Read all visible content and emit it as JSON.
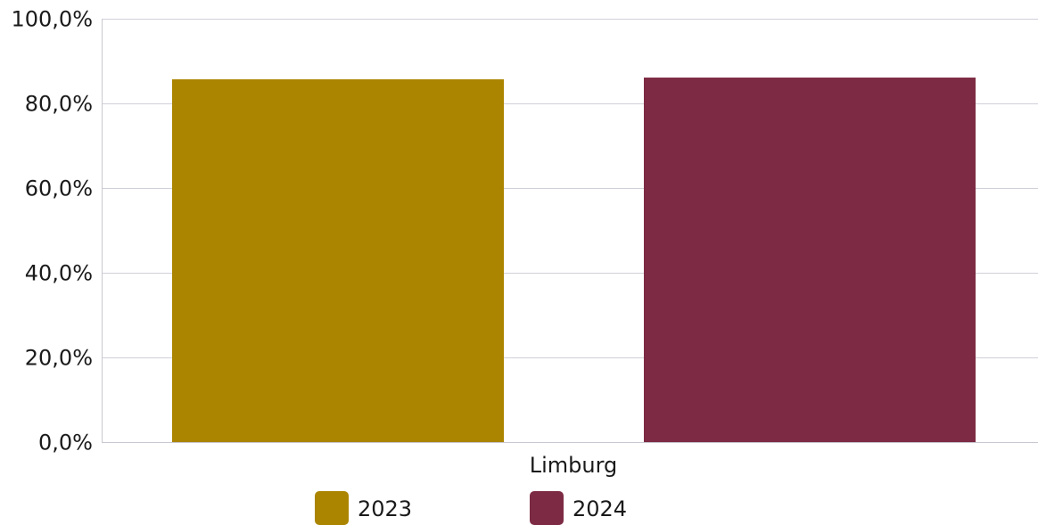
{
  "chart_data": {
    "type": "bar",
    "title": "",
    "xlabel": "",
    "ylabel": "",
    "categories": [
      "Limburg"
    ],
    "series": [
      {
        "name": "2023",
        "values": [
          85.7
        ],
        "color": "#AB8500"
      },
      {
        "name": "2024",
        "values": [
          86.1
        ],
        "color": "#7D2B44"
      }
    ],
    "ylim": [
      0,
      100
    ],
    "yticks": [
      0,
      20,
      40,
      60,
      80,
      100
    ],
    "ytick_labels": [
      "0,0%",
      "20,0%",
      "40,0%",
      "60,0%",
      "80,0%",
      "100,0%"
    ],
    "grid": true,
    "legend_position": "bottom"
  },
  "colors": {
    "grid": "#d0d0d8",
    "axis": "#c8c8d0"
  }
}
